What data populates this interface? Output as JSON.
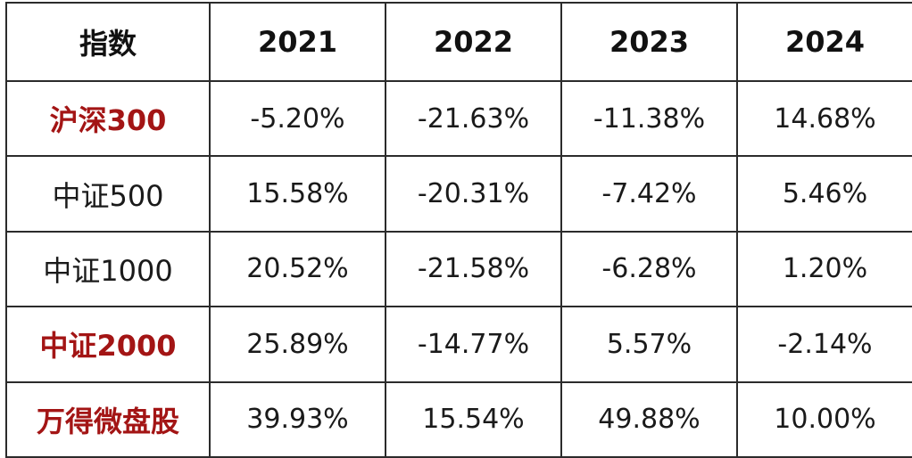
{
  "colors": {
    "text": "#1a1a1a",
    "highlight": "#a31515",
    "border": "#2b2b2b",
    "background": "#ffffff"
  },
  "header": [
    "指数",
    "2021",
    "2022",
    "2023",
    "2024"
  ],
  "rows": [
    {
      "name": "沪深300",
      "highlight": true,
      "values": [
        "-5.20%",
        "-21.63%",
        "-11.38%",
        "14.68%"
      ]
    },
    {
      "name": "中证500",
      "highlight": false,
      "values": [
        "15.58%",
        "-20.31%",
        "-7.42%",
        "5.46%"
      ]
    },
    {
      "name": "中证1000",
      "highlight": false,
      "values": [
        "20.52%",
        "-21.58%",
        "-6.28%",
        "1.20%"
      ]
    },
    {
      "name": "中证2000",
      "highlight": true,
      "values": [
        "25.89%",
        "-14.77%",
        "5.57%",
        "-2.14%"
      ]
    },
    {
      "name": "万得微盘股",
      "highlight": true,
      "values": [
        "39.93%",
        "15.54%",
        "49.88%",
        "10.00%"
      ]
    }
  ]
}
